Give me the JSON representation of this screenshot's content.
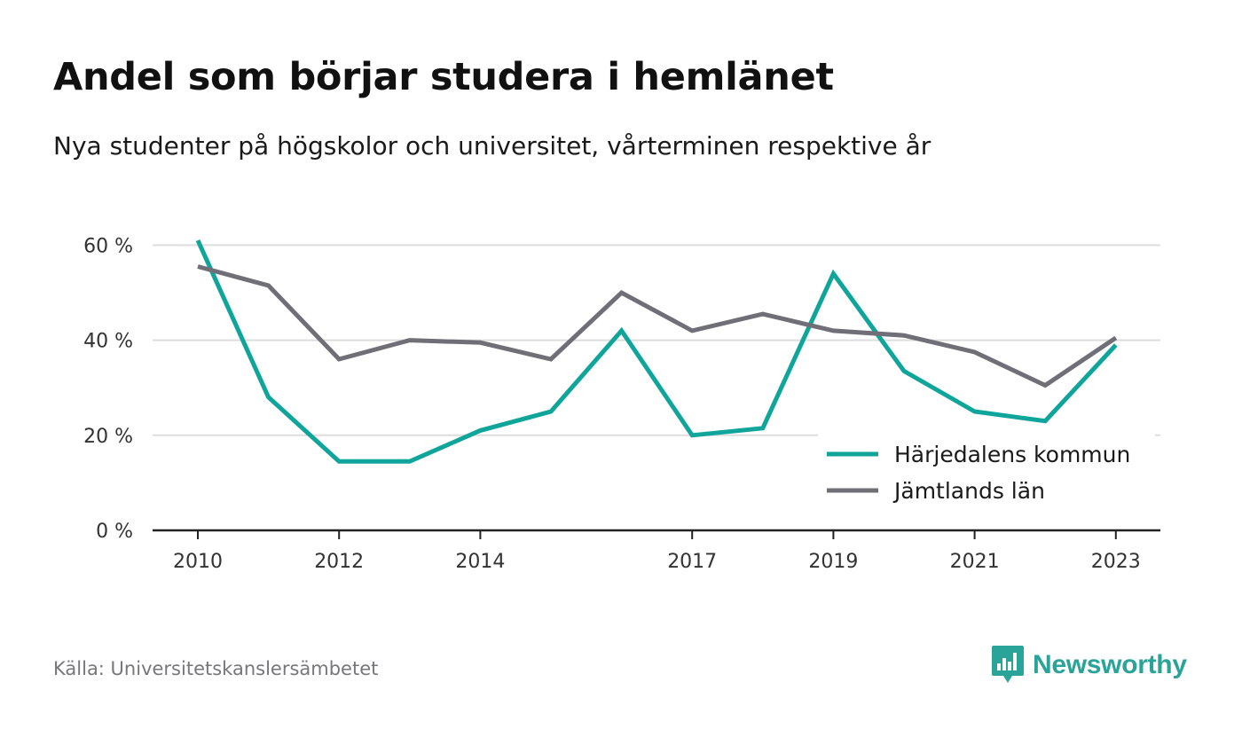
{
  "header": {
    "title": "Andel som börjar studera i hemlänet",
    "subtitle": "Nya studenter på högskolor och universitet, vårterminen respektive år"
  },
  "footer": {
    "source": "Källa: Universitetskanslersämbetet",
    "brand": "Newsworthy",
    "brand_icon": "newsworthy-logo-icon"
  },
  "colors": {
    "harjedalen": "#0fa59a",
    "jamtland": "#706e77",
    "grid": "#dddddd",
    "axis": "#222222",
    "brand": "#2aa399"
  },
  "chart_data": {
    "type": "line",
    "title": "Andel som börjar studera i hemlänet",
    "subtitle": "Nya studenter på högskolor och universitet, vårterminen respektive år",
    "x": [
      2010,
      2011,
      2012,
      2013,
      2014,
      2015,
      2016,
      2017,
      2018,
      2019,
      2020,
      2021,
      2022,
      2023
    ],
    "x_tick_labels": [
      "2010",
      "2012",
      "2014",
      "2017",
      "2019",
      "2021",
      "2023"
    ],
    "y_tick_labels": [
      "0 %",
      "20 %",
      "40 %",
      "60 %"
    ],
    "y_ticks": [
      0,
      20,
      40,
      60
    ],
    "ylim": [
      0,
      60
    ],
    "series": [
      {
        "name": "Härjedalens kommun",
        "color": "#0fa59a",
        "values": [
          61,
          28,
          14.5,
          14.5,
          21,
          25,
          42,
          20,
          21.5,
          54,
          33.5,
          25,
          23,
          39
        ]
      },
      {
        "name": "Jämtlands län",
        "color": "#706e77",
        "values": [
          55.5,
          51.5,
          36,
          40,
          39.5,
          36,
          50,
          42,
          45.5,
          42,
          41,
          37.5,
          30.5,
          40.5
        ]
      }
    ],
    "grid": true,
    "legend_position": "bottom-right"
  }
}
